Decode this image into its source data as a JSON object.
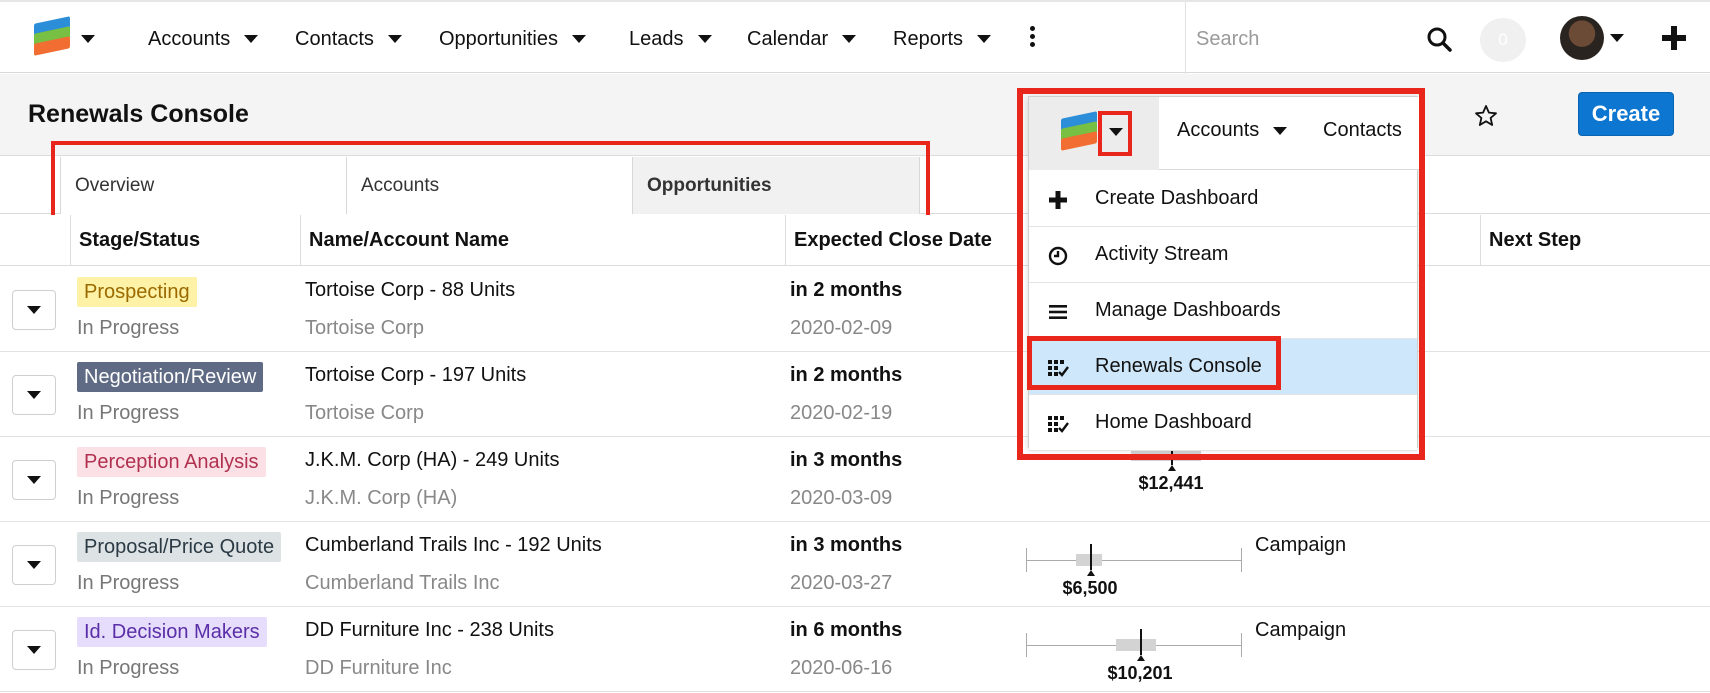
{
  "topnav": {
    "items": [
      {
        "label": "Accounts"
      },
      {
        "label": "Contacts"
      },
      {
        "label": "Opportunities"
      },
      {
        "label": "Leads"
      },
      {
        "label": "Calendar"
      },
      {
        "label": "Reports"
      }
    ],
    "search_placeholder": "Search",
    "notification_count": "0"
  },
  "header": {
    "title": "Renewals Console",
    "create_label": "Create"
  },
  "tabs": [
    {
      "label": "Overview",
      "active": false
    },
    {
      "label": "Accounts",
      "active": false
    },
    {
      "label": "Opportunities",
      "active": true
    }
  ],
  "table": {
    "columns": [
      "Stage/Status",
      "Name/Account Name",
      "Expected Close Date",
      "Next Step"
    ],
    "rows": [
      {
        "stage": "Prospecting",
        "stage_bg": "#fdf2a6",
        "stage_fg": "#9a6a00",
        "status": "In Progress",
        "name": "Tortoise Corp - 88 Units",
        "account": "Tortoise Corp",
        "close_rel": "in 2 months",
        "close_date": "2020-02-09",
        "amount": "",
        "next_step": ""
      },
      {
        "stage": "Negotiation/Review",
        "stage_bg": "#5f6b85",
        "stage_fg": "#ffffff",
        "status": "In Progress",
        "name": "Tortoise Corp - 197 Units",
        "account": "Tortoise Corp",
        "close_rel": "in 2 months",
        "close_date": "2020-02-19",
        "amount": "",
        "next_step": ""
      },
      {
        "stage": "Perception Analysis",
        "stage_bg": "#fbe1e6",
        "stage_fg": "#b0314f",
        "status": "In Progress",
        "name": "J.K.M. Corp (HA) - 249 Units",
        "account": "J.K.M. Corp (HA)",
        "close_rel": "in 3 months",
        "close_date": "2020-03-09",
        "amount": "$12,441",
        "next_step": ""
      },
      {
        "stage": "Proposal/Price Quote",
        "stage_bg": "#dde2e5",
        "stage_fg": "#2b3a44",
        "status": "In Progress",
        "name": "Cumberland Trails Inc - 192 Units",
        "account": "Cumberland Trails Inc",
        "close_rel": "in 3 months",
        "close_date": "2020-03-27",
        "amount": "$6,500",
        "next_step": "Campaign"
      },
      {
        "stage": "Id. Decision Makers",
        "stage_bg": "#e6dcfb",
        "stage_fg": "#5a2ea6",
        "status": "In Progress",
        "name": "DD Furniture Inc - 238 Units",
        "account": "DD Furniture Inc",
        "close_rel": "in 6 months",
        "close_date": "2020-06-16",
        "amount": "$10,201",
        "next_step": "Campaign"
      }
    ]
  },
  "menu": {
    "topnav": [
      {
        "label": "Accounts"
      },
      {
        "label": "Contacts"
      }
    ],
    "items": [
      {
        "label": "Create Dashboard",
        "icon": "plus-icon"
      },
      {
        "label": "Activity Stream",
        "icon": "clock-icon"
      },
      {
        "label": "Manage Dashboards",
        "icon": "list-icon"
      },
      {
        "label": "Renewals Console",
        "icon": "dashboard-icon",
        "selected": true
      },
      {
        "label": "Home Dashboard",
        "icon": "dashboard-icon"
      }
    ]
  },
  "colors": {
    "accent": "#0c76d0",
    "annotation": "#e8261b",
    "menu_selected": "#cfe7fa"
  }
}
